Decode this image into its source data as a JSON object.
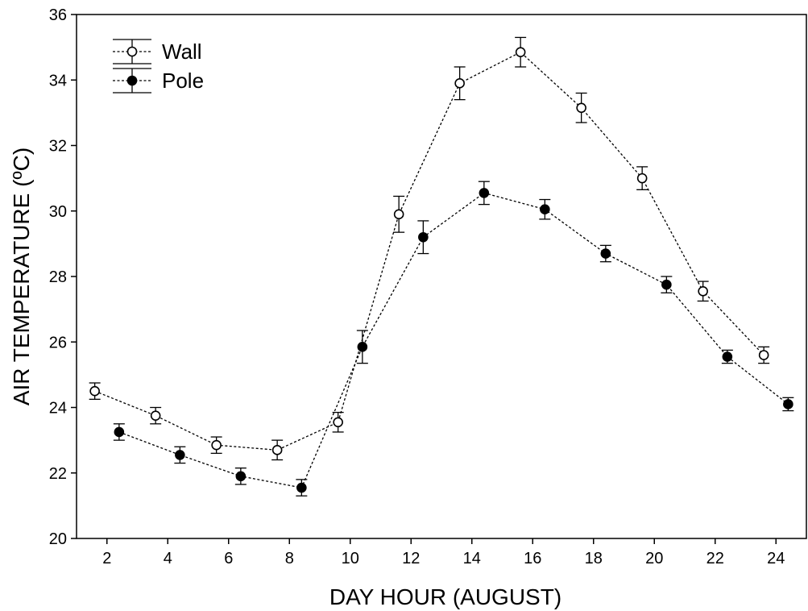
{
  "chart_data": {
    "type": "line",
    "title": "",
    "xlabel": "DAY HOUR (AUGUST)",
    "ylabel": "AIR TEMPERATURE (ºC)",
    "xlim": [
      1,
      25
    ],
    "ylim": [
      20,
      36
    ],
    "xticks": [
      2,
      4,
      6,
      8,
      10,
      12,
      14,
      16,
      18,
      20,
      22,
      24
    ],
    "yticks": [
      20,
      22,
      24,
      26,
      28,
      30,
      32,
      34,
      36
    ],
    "grid": false,
    "legend_position": "top-left",
    "series": [
      {
        "name": "Wall",
        "marker": "open-circle",
        "line_style": "dashed",
        "color": "#000000",
        "x": [
          1.6,
          3.6,
          5.6,
          7.6,
          9.6,
          11.6,
          13.6,
          15.6,
          17.6,
          19.6,
          21.6,
          23.6
        ],
        "y": [
          24.5,
          23.75,
          22.85,
          22.7,
          23.55,
          29.9,
          33.9,
          34.85,
          33.15,
          31.0,
          27.55,
          25.6
        ],
        "err": [
          0.25,
          0.25,
          0.25,
          0.3,
          0.3,
          0.55,
          0.5,
          0.45,
          0.45,
          0.35,
          0.3,
          0.25
        ]
      },
      {
        "name": "Pole",
        "marker": "filled-circle",
        "line_style": "dashed",
        "color": "#000000",
        "x": [
          2.4,
          4.4,
          6.4,
          8.4,
          10.4,
          12.4,
          14.4,
          16.4,
          18.4,
          20.4,
          22.4,
          24.4
        ],
        "y": [
          23.25,
          22.55,
          21.9,
          21.55,
          25.85,
          29.2,
          30.55,
          30.05,
          28.7,
          27.75,
          25.55,
          24.1
        ],
        "err": [
          0.25,
          0.25,
          0.25,
          0.25,
          0.5,
          0.5,
          0.35,
          0.3,
          0.25,
          0.25,
          0.2,
          0.2
        ]
      }
    ]
  }
}
